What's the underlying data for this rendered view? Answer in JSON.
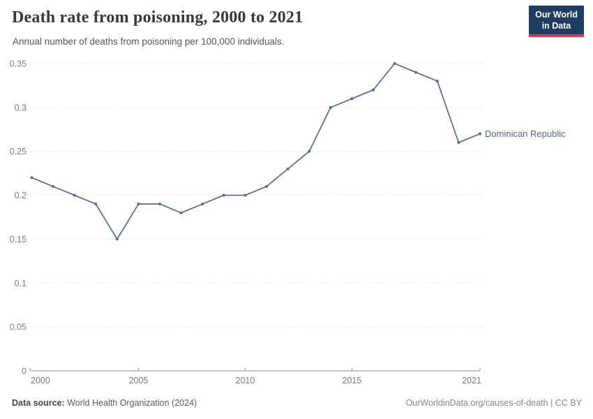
{
  "header": {
    "title": "Death rate from poisoning, 2000 to 2021",
    "subtitle": "Annual number of deaths from poisoning per 100,000 individuals.",
    "logo": {
      "line1": "Our World",
      "line2": "in Data",
      "bg_color": "#1d3d63",
      "accent_color": "#dc354a"
    }
  },
  "chart_data": {
    "type": "line",
    "title": "Death rate from poisoning, 2000 to 2021",
    "xlabel": "",
    "ylabel": "",
    "ylim": [
      0,
      0.35
    ],
    "yticks": [
      0,
      0.05,
      0.1,
      0.15,
      0.2,
      0.25,
      0.3,
      0.35
    ],
    "xticks": [
      2000,
      2005,
      2010,
      2015,
      2021
    ],
    "grid": "horizontal-dashed",
    "legend_position": "end-of-line-label",
    "series": [
      {
        "name": "Dominican Republic",
        "color": "#4C6A9C",
        "x": [
          2000,
          2001,
          2002,
          2003,
          2004,
          2005,
          2006,
          2007,
          2008,
          2009,
          2010,
          2011,
          2012,
          2013,
          2014,
          2015,
          2016,
          2017,
          2018,
          2019,
          2020,
          2021
        ],
        "values": [
          0.22,
          0.21,
          0.2,
          0.19,
          0.15,
          0.19,
          0.19,
          0.18,
          0.19,
          0.2,
          0.2,
          0.21,
          0.23,
          0.25,
          0.3,
          0.31,
          0.32,
          0.35,
          0.34,
          0.33,
          0.26,
          0.27
        ]
      }
    ]
  },
  "footer": {
    "source_label": "Data source:",
    "source_value": "World Health Organization (2024)",
    "link": "OurWorldinData.org/causes-of-death | CC BY"
  },
  "colors": {
    "line": "#4C6A9C",
    "gridline": "#e3e3e3",
    "axis": "#8f8f8f",
    "tick_label": "#7a7a7a"
  }
}
